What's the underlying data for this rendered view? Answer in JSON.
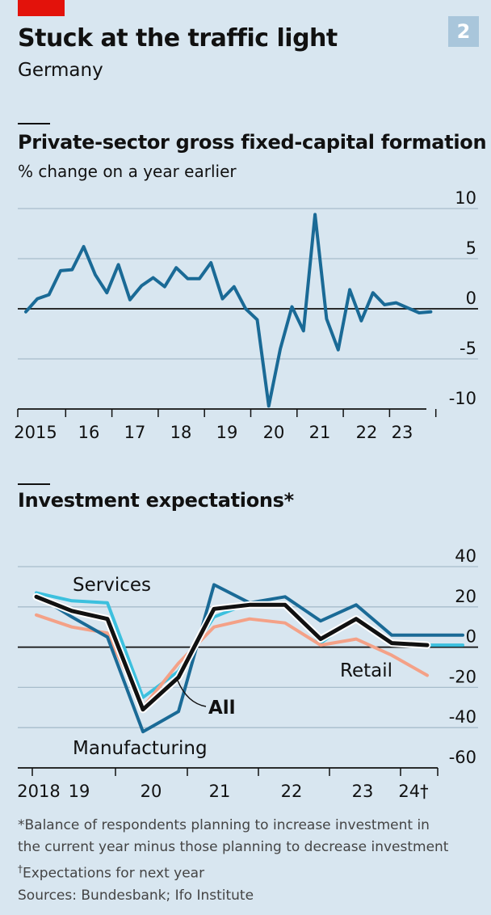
{
  "header": {
    "title": "Stuck at the traffic light",
    "subtitle": "Germany",
    "badge": "2"
  },
  "chart_data": [
    {
      "type": "line",
      "title": "Private-sector gross fixed-capital formation",
      "subtitle": "% change on a year earlier",
      "ylim": [
        -10,
        10
      ],
      "yticks": [
        "10",
        "5",
        "0",
        "-5",
        "-10"
      ],
      "xtick_labels": [
        "2015",
        "16",
        "17",
        "18",
        "19",
        "20",
        "21",
        "22",
        "23"
      ],
      "grid": true,
      "series": [
        {
          "color": "#1a6a96",
          "x": [
            2015.0,
            2015.25,
            2015.5,
            2015.75,
            2016.0,
            2016.25,
            2016.5,
            2016.75,
            2017.0,
            2017.25,
            2017.5,
            2017.75,
            2018.0,
            2018.25,
            2018.5,
            2018.75,
            2019.0,
            2019.25,
            2019.5,
            2019.75,
            2020.0,
            2020.25,
            2020.5,
            2020.75,
            2021.0,
            2021.25,
            2021.5,
            2021.75,
            2022.0,
            2022.25,
            2022.5,
            2022.75,
            2023.0,
            2023.25,
            2023.5,
            2023.75
          ],
          "values": [
            -0.3,
            1.0,
            1.4,
            3.8,
            3.9,
            6.2,
            3.4,
            1.6,
            4.4,
            0.9,
            2.3,
            3.1,
            2.2,
            4.1,
            3.0,
            3.0,
            4.6,
            1.0,
            2.2,
            0.0,
            -1.1,
            -9.7,
            -4.0,
            0.2,
            -2.2,
            9.4,
            -1.0,
            -4.1,
            1.9,
            -1.2,
            1.6,
            0.4,
            0.6,
            0.1,
            -0.4,
            -0.3
          ]
        }
      ]
    },
    {
      "type": "line",
      "title": "Investment expectations*",
      "ylim": [
        -60,
        40
      ],
      "yticks": [
        "40",
        "20",
        "0",
        "-20",
        "-40",
        "-60"
      ],
      "xtick_labels": [
        "2018",
        "19",
        "20",
        "21",
        "22",
        "23",
        "24†"
      ],
      "grid": true,
      "series_labels": [
        "Services",
        "All",
        "Manufacturing",
        "Retail"
      ],
      "series": [
        {
          "name": "Services",
          "color": "#3cc0de",
          "x": [
            2018.0,
            2018.5,
            2019.0,
            2019.5,
            2020.0,
            2020.5,
            2021.0,
            2021.5,
            2022.0,
            2022.5,
            2023.0,
            2023.5,
            2024.0
          ],
          "values": [
            27,
            23,
            22,
            -25,
            -12,
            15,
            22,
            22,
            2,
            15,
            2,
            1,
            1
          ]
        },
        {
          "name": "Retail",
          "color": "#f4a187",
          "x": [
            2018.0,
            2018.5,
            2019.0,
            2019.5,
            2020.0,
            2020.5,
            2021.0,
            2021.5,
            2022.0,
            2022.5,
            2023.0,
            2023.5,
            2024.0
          ],
          "values": [
            16,
            10,
            7,
            -30,
            -8,
            10,
            14,
            12,
            1,
            4,
            -4,
            -14,
            null
          ]
        },
        {
          "name": "Manufacturing",
          "color": "#1a6a96",
          "x": [
            2018.0,
            2018.5,
            2019.0,
            2019.5,
            2020.0,
            2020.5,
            2021.0,
            2021.5,
            2022.0,
            2022.5,
            2023.0,
            2023.5,
            2024.0
          ],
          "values": [
            26,
            15,
            5,
            -42,
            -32,
            31,
            22,
            25,
            13,
            21,
            6,
            6,
            6
          ]
        },
        {
          "name": "All",
          "color": "#111111",
          "x": [
            2018.0,
            2018.5,
            2019.0,
            2019.5,
            2020.0,
            2020.5,
            2021.0,
            2021.5,
            2022.0,
            2022.5,
            2023.0,
            2023.5,
            2024.0
          ],
          "values": [
            25,
            18,
            14,
            -31,
            -15,
            19,
            21,
            21,
            4,
            14,
            2,
            1,
            null
          ]
        }
      ]
    }
  ],
  "footnotes": {
    "line1": "*Balance of respondents planning to increase investment in",
    "line2": "the current year minus those planning to decrease investment",
    "dagger": "†",
    "line3": "Expectations for next year",
    "sources": "Sources: Bundesbank; Ifo Institute"
  }
}
